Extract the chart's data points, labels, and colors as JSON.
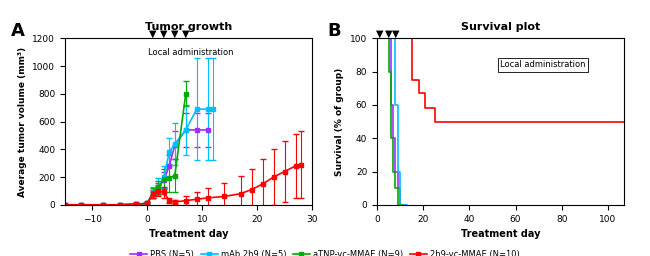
{
  "title_A": "Tumor growth",
  "title_B": "Survival plot",
  "xlabel": "Treatment day",
  "ylabel_A": "Average tumor volume (mm³)",
  "ylabel_B": "Survival (% of group)",
  "annotation_A": "Local administration",
  "annotation_B": "Local administration",
  "colors": {
    "PBS": "#9B30FF",
    "mAb2h9": "#00BFFF",
    "aTNP": "#00AA00",
    "2h9vc": "#FF0000"
  },
  "arrows_A": [
    1,
    3,
    5,
    7
  ],
  "arrows_B": [
    1,
    5,
    8
  ],
  "PBS_x": [
    -15,
    -12,
    -8,
    -5,
    -2,
    0,
    1,
    2,
    3,
    4,
    5,
    7,
    9,
    11
  ],
  "PBS_y": [
    0,
    0,
    0,
    0,
    5,
    10,
    80,
    120,
    180,
    280,
    430,
    540,
    540,
    540
  ],
  "PBS_err": [
    0,
    0,
    0,
    0,
    5,
    10,
    30,
    40,
    60,
    80,
    100,
    120,
    120,
    120
  ],
  "mAb_x": [
    -15,
    -12,
    -8,
    -5,
    -2,
    0,
    1,
    2,
    3,
    4,
    5,
    7,
    9,
    11,
    12
  ],
  "mAb_y": [
    0,
    0,
    0,
    0,
    5,
    10,
    90,
    130,
    200,
    380,
    440,
    540,
    690,
    690,
    690
  ],
  "mAb_err": [
    0,
    0,
    0,
    0,
    5,
    10,
    40,
    60,
    80,
    100,
    150,
    180,
    370,
    370,
    370
  ],
  "aTNP_x": [
    -15,
    -12,
    -8,
    -5,
    -2,
    0,
    1,
    2,
    3,
    4,
    5,
    7
  ],
  "aTNP_y": [
    0,
    0,
    0,
    0,
    5,
    10,
    85,
    125,
    185,
    195,
    210,
    800
  ],
  "aTNP_err": [
    0,
    0,
    0,
    0,
    5,
    10,
    35,
    50,
    70,
    100,
    120,
    90
  ],
  "vcMMAE_x": [
    -15,
    -12,
    -8,
    -5,
    -2,
    0,
    1,
    2,
    3,
    4,
    5,
    7,
    9,
    11,
    14,
    17,
    19,
    21,
    23,
    25,
    27,
    28
  ],
  "vcMMAE_y": [
    0,
    0,
    0,
    0,
    5,
    10,
    80,
    100,
    90,
    30,
    20,
    30,
    40,
    50,
    60,
    80,
    110,
    150,
    200,
    240,
    280,
    290
  ],
  "vcMMAE_err": [
    0,
    0,
    0,
    0,
    5,
    10,
    30,
    40,
    40,
    20,
    15,
    30,
    50,
    70,
    100,
    130,
    150,
    180,
    200,
    220,
    230,
    240
  ],
  "surv_PBS_x": [
    0,
    5,
    6,
    7,
    8,
    9,
    10,
    11,
    12
  ],
  "surv_PBS_y": [
    100,
    100,
    60,
    40,
    20,
    10,
    0,
    0,
    0
  ],
  "surv_mAb_x": [
    0,
    7,
    8,
    9,
    10,
    11,
    12,
    13
  ],
  "surv_mAb_y": [
    100,
    100,
    60,
    20,
    0,
    0,
    0,
    0
  ],
  "surv_aTNP_x": [
    0,
    4,
    5,
    6,
    7,
    8,
    9,
    10,
    11
  ],
  "surv_aTNP_y": [
    100,
    100,
    80,
    40,
    20,
    10,
    0,
    0,
    0
  ],
  "surv_2h9_x": [
    0,
    10,
    15,
    18,
    21,
    25,
    107
  ],
  "surv_2h9_y": [
    100,
    100,
    75,
    67,
    58,
    50,
    50
  ],
  "legend_labels": [
    "PBS (N=5)",
    "mAb 2h9 (N=5)",
    "aTNP-vc-MMAE (N=9)",
    "2h9-vc-MMAE (N=10)"
  ]
}
